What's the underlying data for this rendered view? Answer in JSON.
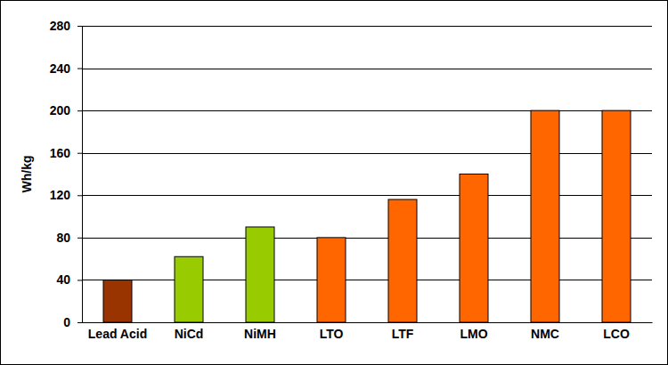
{
  "chart_data": {
    "type": "bar",
    "y_label": "Wh/kg",
    "categories": [
      "Lead Acid",
      "NiCd",
      "NiMH",
      "LTO",
      "LTF",
      "LMO",
      "NMC",
      "LCO"
    ],
    "values": [
      40,
      62,
      90,
      80,
      116,
      140,
      200,
      200
    ],
    "colors": [
      "#993300",
      "#99cc00",
      "#99cc00",
      "#ff6600",
      "#ff6600",
      "#ff6600",
      "#ff6600",
      "#ff6600"
    ],
    "ylim": [
      0,
      280
    ],
    "yticks": [
      0,
      40,
      80,
      120,
      160,
      200,
      240,
      280
    ],
    "grid": true
  }
}
